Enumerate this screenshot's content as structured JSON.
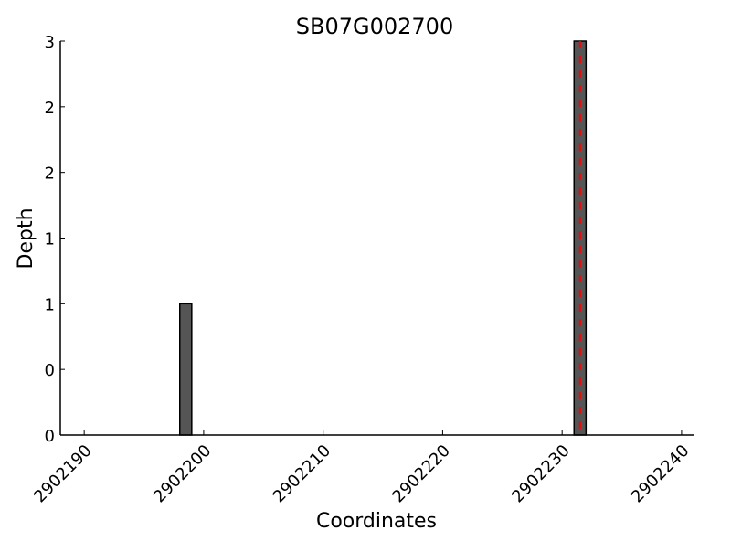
{
  "chart_data": {
    "type": "bar",
    "title": "SB07G002700",
    "xlabel": "Coordinates",
    "ylabel": "Depth",
    "xlim": [
      2902188,
      2902241
    ],
    "ylim": [
      0,
      3
    ],
    "x_ticks": [
      2902190,
      2902200,
      2902210,
      2902220,
      2902230,
      2902240
    ],
    "x_tick_labels": [
      "2902190",
      "2902200",
      "2902210",
      "2902220",
      "2902230",
      "2902240"
    ],
    "y_ticks": [
      0,
      0.5,
      1,
      1.5,
      2,
      2.5,
      3
    ],
    "y_tick_labels": [
      "0",
      "0",
      "1",
      "1",
      "2",
      "2",
      "3"
    ],
    "bars": [
      {
        "x": 2902198,
        "width": 1,
        "value": 1
      },
      {
        "x": 2902231,
        "width": 1,
        "value": 3
      }
    ],
    "bar_color": "#555555",
    "bar_edge_color": "#000000",
    "marker_line": {
      "x": 2902231.5,
      "color": "#ff0000",
      "style": "dashed"
    },
    "grid": false
  }
}
